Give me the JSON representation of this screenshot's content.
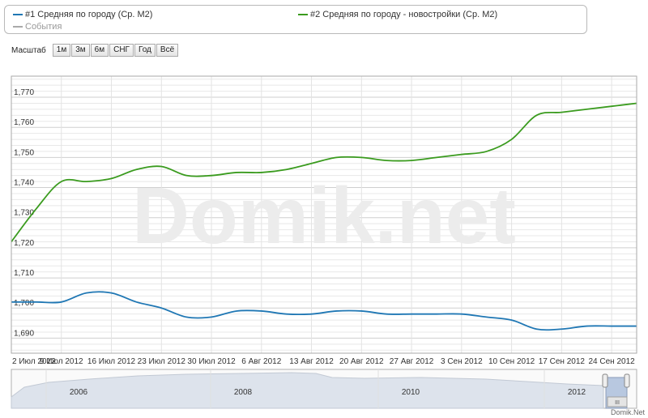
{
  "legend": {
    "series1": "#1 Средняя по городу (Ср. M2)",
    "series2": "#2 Средняя по городу - новостройки (Ср. M2)",
    "events": "События"
  },
  "scale": {
    "label": "Масштаб",
    "buttons": [
      "1м",
      "3м",
      "6м",
      "СНГ",
      "Год",
      "Всё"
    ]
  },
  "watermark": "Domik.net",
  "navigator": {
    "years": [
      "2006",
      "2008",
      "2010",
      "2012"
    ],
    "scroll_grip": "III"
  },
  "brand": "Domik.Net",
  "colors": {
    "series1": "#1f77b4",
    "series2": "#3a9b1e",
    "events": "#aaaaaa"
  },
  "chart_data": {
    "type": "line",
    "x": [
      "2 Июл 2012",
      "5 Июл 2012",
      "9 Июл 2012",
      "13 Июл 2012",
      "16 Июл 2012",
      "20 Июл 2012",
      "23 Июл 2012",
      "26 Июл 2012",
      "30 Июл 2012",
      "3 Авг 2012",
      "6 Авг 2012",
      "9 Авг 2012",
      "13 Авг 2012",
      "16 Авг 2012",
      "20 Авг 2012",
      "23 Авг 2012",
      "27 Авг 2012",
      "30 Авг 2012",
      "3 Сен 2012",
      "6 Сен 2012",
      "10 Сен 2012",
      "14 Сен 2012",
      "17 Сен 2012",
      "20 Сен 2012",
      "24 Сен 2012",
      "28 Сен 2012"
    ],
    "x_ticks": [
      "2 Июл 2012",
      "9 Июл 2012",
      "16 Июл 2012",
      "23 Июл 2012",
      "30 Июл 2012",
      "6 Авг 2012",
      "13 Авг 2012",
      "20 Авг 2012",
      "27 Авг 2012",
      "3 Сен 2012",
      "10 Сен 2012",
      "17 Сен 2012",
      "24 Сен 2012"
    ],
    "y_ticks": [
      "1,690",
      "1,700",
      "1,710",
      "1,720",
      "1,730",
      "1,740",
      "1,750",
      "1,760",
      "1,770"
    ],
    "ylim": [
      1685,
      1777
    ],
    "series": [
      {
        "name": "#1 Средняя по городу (Ср. M2)",
        "values": [
          1702,
          1702,
          1702,
          1705,
          1705,
          1702,
          1700,
          1697,
          1697,
          1699,
          1699,
          1698,
          1698,
          1699,
          1699,
          1698,
          1698,
          1698,
          1698,
          1697,
          1696,
          1693,
          1693,
          1694,
          1694,
          1694
        ]
      },
      {
        "name": "#2 Средняя по городу - новостройки (Ср. M2)",
        "values": [
          1722,
          1733,
          1742,
          1742,
          1743,
          1746,
          1747,
          1744,
          1744,
          1745,
          1745,
          1746,
          1748,
          1750,
          1750,
          1749,
          1749,
          1750,
          1751,
          1752,
          1756,
          1764,
          1765,
          1766,
          1767,
          1768
        ]
      }
    ],
    "grid": true,
    "legend_position": "top"
  }
}
